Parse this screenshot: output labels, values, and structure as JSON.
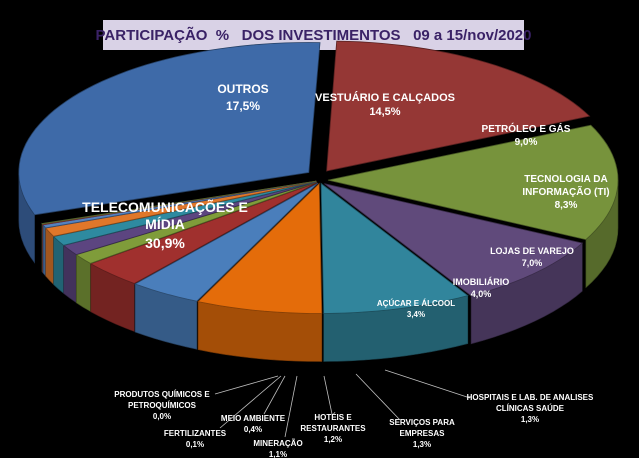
{
  "chart_data": {
    "type": "pie",
    "title": "PARTICIPAÇÃO  %   DOS INVESTIMENTOS   09 a 15/nov/2020",
    "slices": [
      {
        "label": "OUTROS",
        "value": 17.5,
        "value_label": "17,5%",
        "color": "#953735"
      },
      {
        "label": "VESTUÁRIO E CALÇADOS",
        "value": 14.5,
        "value_label": "14,5%",
        "color": "#77933c"
      },
      {
        "label": "PETRÓLEO E GÁS",
        "value": 9.0,
        "value_label": "9,0%",
        "color": "#604a7b"
      },
      {
        "label": "TECNOLOGIA DA INFORMAÇÃO (TI)",
        "value": 8.3,
        "value_label": "8,3%",
        "color": "#31859c"
      },
      {
        "label": "LOJAS DE VAREJO",
        "value": 7.0,
        "value_label": "7,0%",
        "color": "#e46c0a"
      },
      {
        "label": "IMOBILIÁRIO",
        "value": 4.0,
        "value_label": "4,0%",
        "color": "#4a7ebb"
      },
      {
        "label": "AÇÚCAR E ÁLCOOL",
        "value": 3.4,
        "value_label": "3,4%",
        "color": "#a0302e"
      },
      {
        "label": "HOSPITAIS E LAB. DE ANALISES CLÍNICAS SAÚDE",
        "value": 1.3,
        "value_label": "1,3%",
        "color": "#7f9c3a"
      },
      {
        "label": "SERVIÇOS PARA EMPRESAS",
        "value": 1.3,
        "value_label": "1,3%",
        "color": "#5c4580"
      },
      {
        "label": "HOTÉIS E RESTAURANTES",
        "value": 1.2,
        "value_label": "1,2%",
        "color": "#2e8aa0"
      },
      {
        "label": "MINERAÇÃO",
        "value": 1.1,
        "value_label": "1,1%",
        "color": "#e0772a"
      },
      {
        "label": "MEIO AMBIENTE",
        "value": 0.4,
        "value_label": "0,4%",
        "color": "#5482c0"
      },
      {
        "label": "FERTILIZANTES",
        "value": 0.1,
        "value_label": "0,1%",
        "color": "#b84a48"
      },
      {
        "label": "PRODUTOS QUÍMICOS E PETROQUÍMICOS",
        "value": 0.0,
        "value_label": "0,0%",
        "color": "#8ca54a"
      },
      {
        "label": "TELECOMUNICAÇÕES E MÍDIA",
        "value": 30.9,
        "value_label": "30,9%",
        "color": "#3e6aa8"
      }
    ],
    "style": "3d-exploded"
  }
}
